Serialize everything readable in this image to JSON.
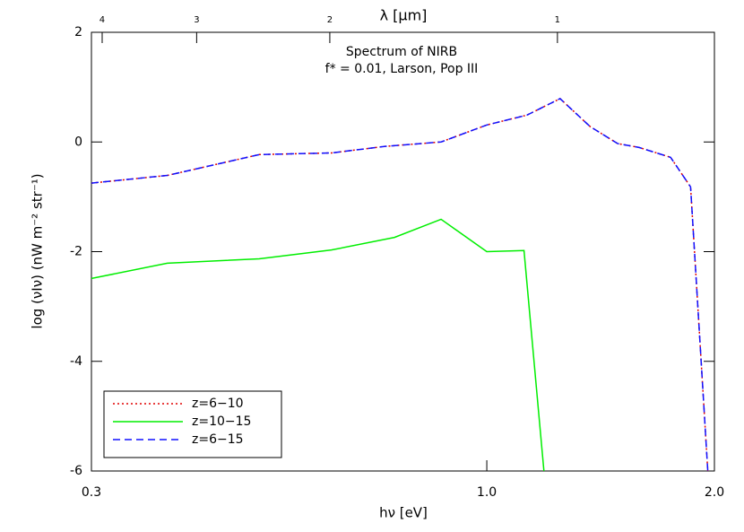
{
  "chart_data": {
    "type": "line",
    "annotations": [
      "Spectrum of NIRB",
      "f* = 0.01, Larson, Pop III"
    ],
    "xlabel": "hν [eV]",
    "ylabel": "log (νIν) (nW m⁻² str⁻¹)",
    "x2label": "λ [μm]",
    "xscale": "log",
    "xlim": [
      0.3,
      2.0
    ],
    "xticks": [
      0.3,
      {
        "value": 1,
        "label": "1.0"
      },
      {
        "value": 2,
        "label": "2.0"
      }
    ],
    "x2lim": [
      4.133,
      0.62
    ],
    "x2ticks": [
      4,
      3,
      2,
      1
    ],
    "ylim": [
      -6,
      2
    ],
    "yticks": [
      -6,
      -4,
      -2,
      0,
      2
    ],
    "legend": "lower left",
    "series": [
      {
        "name": "z=6−10",
        "color": "#e00000",
        "dash": "dotted",
        "x": [
          0.3,
          0.378,
          0.5,
          0.623,
          0.734,
          0.87,
          1.0,
          1.13,
          1.25,
          1.37,
          1.49,
          1.59,
          1.75,
          1.86,
          1.96
        ],
        "values": [
          -0.75,
          -0.61,
          -0.23,
          -0.2,
          -0.08,
          0.0,
          0.31,
          0.49,
          0.79,
          0.28,
          -0.03,
          -0.1,
          -0.28,
          -0.82,
          -6
        ]
      },
      {
        "name": "z=10−15",
        "color": "#00ee00",
        "dash": "solid",
        "x": [
          0.3,
          0.378,
          0.5,
          0.623,
          0.755,
          0.87,
          1.0,
          1.12,
          1.19
        ],
        "values": [
          -2.49,
          -2.21,
          -2.13,
          -1.97,
          -1.74,
          -1.41,
          -2.0,
          -1.98,
          -6
        ]
      },
      {
        "name": "z=6−15",
        "color": "#1010ff",
        "dash": "dashed",
        "x": [
          0.3,
          0.378,
          0.5,
          0.623,
          0.734,
          0.87,
          1.0,
          1.13,
          1.25,
          1.37,
          1.49,
          1.59,
          1.75,
          1.86,
          1.96
        ],
        "values": [
          -0.75,
          -0.61,
          -0.23,
          -0.2,
          -0.08,
          0.0,
          0.31,
          0.49,
          0.79,
          0.28,
          -0.03,
          -0.1,
          -0.28,
          -0.82,
          -6
        ]
      }
    ]
  }
}
